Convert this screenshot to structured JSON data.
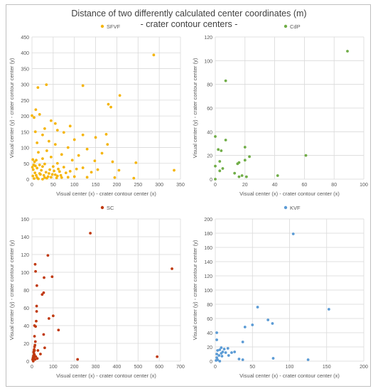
{
  "figure": {
    "title": "Distance of two differently calculated center coordinates (m)",
    "subtitle": "- crater contour centers -"
  },
  "colors": {
    "SFVF": "#f5b50b",
    "CdP": "#70ad47",
    "SC": "#c0390f",
    "KVF": "#5b9bd5",
    "grid": "#d9d9d9",
    "text": "#595959"
  },
  "chart_data": [
    {
      "type": "scatter",
      "legend": "SFVF",
      "legend_position": "top",
      "xlabel": "Visual center (x) - crater contour center (x)",
      "ylabel": "Visual center (y) - crater contour center (y)",
      "xlim": [
        0,
        350
      ],
      "ylim": [
        0,
        450
      ],
      "xticks": [
        0,
        50,
        100,
        150,
        200,
        250,
        300,
        350
      ],
      "yticks": [
        0,
        50,
        100,
        150,
        200,
        250,
        300,
        350,
        400,
        450
      ],
      "grid": true,
      "points": [
        [
          287,
          393
        ],
        [
          34,
          299
        ],
        [
          14,
          290
        ],
        [
          120,
          296
        ],
        [
          207,
          265
        ],
        [
          180,
          237
        ],
        [
          186,
          228
        ],
        [
          9,
          220
        ],
        [
          18,
          205
        ],
        [
          0,
          201
        ],
        [
          5,
          195
        ],
        [
          45,
          185
        ],
        [
          55,
          176
        ],
        [
          90,
          168
        ],
        [
          30,
          160
        ],
        [
          60,
          155
        ],
        [
          8,
          150
        ],
        [
          25,
          140
        ],
        [
          75,
          148
        ],
        [
          120,
          140
        ],
        [
          175,
          142
        ],
        [
          150,
          132
        ],
        [
          100,
          125
        ],
        [
          40,
          120
        ],
        [
          12,
          115
        ],
        [
          55,
          110
        ],
        [
          178,
          110
        ],
        [
          85,
          100
        ],
        [
          130,
          95
        ],
        [
          35,
          90
        ],
        [
          15,
          85
        ],
        [
          165,
          82
        ],
        [
          70,
          78
        ],
        [
          110,
          75
        ],
        [
          45,
          70
        ],
        [
          25,
          65
        ],
        [
          95,
          60
        ],
        [
          148,
          58
        ],
        [
          190,
          55
        ],
        [
          245,
          52
        ],
        [
          60,
          50
        ],
        [
          30,
          48
        ],
        [
          18,
          45
        ],
        [
          8,
          42
        ],
        [
          50,
          40
        ],
        [
          75,
          38
        ],
        [
          120,
          36
        ],
        [
          105,
          32
        ],
        [
          155,
          30
        ],
        [
          205,
          28
        ],
        [
          335,
          28
        ],
        [
          140,
          22
        ],
        [
          80,
          20
        ],
        [
          40,
          18
        ],
        [
          20,
          15
        ],
        [
          10,
          12
        ],
        [
          60,
          10
        ],
        [
          100,
          8
        ],
        [
          130,
          6
        ],
        [
          195,
          5
        ],
        [
          240,
          3
        ],
        [
          5,
          2
        ],
        [
          15,
          1
        ],
        [
          25,
          0
        ],
        [
          35,
          3
        ],
        [
          45,
          6
        ],
        [
          55,
          14
        ],
        [
          65,
          24
        ],
        [
          70,
          5
        ],
        [
          3,
          30
        ],
        [
          7,
          20
        ],
        [
          2,
          10
        ],
        [
          12,
          35
        ],
        [
          22,
          28
        ],
        [
          28,
          12
        ],
        [
          33,
          22
        ],
        [
          38,
          8
        ],
        [
          42,
          30
        ],
        [
          48,
          15
        ],
        [
          52,
          26
        ],
        [
          58,
          4
        ],
        [
          62,
          32
        ],
        [
          68,
          12
        ],
        [
          85,
          6
        ],
        [
          90,
          25
        ],
        [
          12,
          5
        ],
        [
          18,
          18
        ],
        [
          25,
          40
        ],
        [
          30,
          5
        ],
        [
          6,
          55
        ],
        [
          4,
          45
        ],
        [
          10,
          60
        ],
        [
          2,
          62
        ],
        [
          1,
          38
        ]
      ]
    },
    {
      "type": "scatter",
      "legend": "CdP",
      "legend_position": "top",
      "xlabel": "Visual center (x) - crater contour center (x)",
      "ylabel": "Visual center (y) - crater contour center (y)",
      "xlim": [
        0,
        100
      ],
      "ylim": [
        0,
        120
      ],
      "xticks": [
        0,
        20,
        40,
        60,
        80,
        100
      ],
      "yticks": [
        0,
        20,
        40,
        60,
        80,
        100,
        120
      ],
      "grid": true,
      "points": [
        [
          89,
          108
        ],
        [
          7,
          83
        ],
        [
          0,
          36
        ],
        [
          7,
          33
        ],
        [
          20,
          27
        ],
        [
          2,
          25
        ],
        [
          4,
          24
        ],
        [
          23,
          19
        ],
        [
          61,
          20
        ],
        [
          20,
          16
        ],
        [
          3,
          15
        ],
        [
          16,
          14
        ],
        [
          15,
          13
        ],
        [
          0,
          11
        ],
        [
          5,
          9
        ],
        [
          3,
          7
        ],
        [
          13,
          5
        ],
        [
          18,
          3
        ],
        [
          21,
          2
        ],
        [
          16,
          2
        ],
        [
          42,
          3
        ],
        [
          0,
          0
        ]
      ]
    },
    {
      "type": "scatter",
      "legend": "SC",
      "legend_position": "top",
      "xlabel": "Visual center (x) - crater contour center (x)",
      "ylabel": "Visual center (y) - crater contour center (y)",
      "xlim": [
        0,
        700
      ],
      "ylim": [
        0,
        160
      ],
      "xticks": [
        0,
        100,
        200,
        300,
        400,
        500,
        600,
        700
      ],
      "yticks": [
        0,
        20,
        40,
        60,
        80,
        100,
        120,
        140,
        160
      ],
      "grid": true,
      "points": [
        [
          275,
          144
        ],
        [
          75,
          119
        ],
        [
          15,
          109
        ],
        [
          17,
          101
        ],
        [
          660,
          104
        ],
        [
          95,
          95
        ],
        [
          57,
          94
        ],
        [
          23,
          85
        ],
        [
          48,
          75
        ],
        [
          55,
          77
        ],
        [
          22,
          62
        ],
        [
          22,
          56
        ],
        [
          100,
          51
        ],
        [
          80,
          48
        ],
        [
          20,
          45
        ],
        [
          17,
          39
        ],
        [
          12,
          40
        ],
        [
          125,
          35
        ],
        [
          55,
          30
        ],
        [
          16,
          22
        ],
        [
          14,
          18
        ],
        [
          12,
          16
        ],
        [
          10,
          13
        ],
        [
          12,
          12
        ],
        [
          9,
          11
        ],
        [
          8,
          10
        ],
        [
          10,
          8
        ],
        [
          12,
          7
        ],
        [
          7,
          6
        ],
        [
          9,
          5
        ],
        [
          5,
          4
        ],
        [
          8,
          3
        ],
        [
          3,
          2
        ],
        [
          5,
          1
        ],
        [
          6,
          0
        ],
        [
          15,
          2
        ],
        [
          18,
          5
        ],
        [
          25,
          3
        ],
        [
          215,
          2
        ],
        [
          590,
          5
        ],
        [
          28,
          12
        ],
        [
          40,
          8
        ],
        [
          60,
          15
        ],
        [
          12,
          28
        ]
      ]
    },
    {
      "type": "scatter",
      "legend": "KVF",
      "legend_position": "top",
      "xlabel": "Visual center (x) - crater contour center (x)",
      "ylabel": "Visual center (y) - crater contour center (y)",
      "xlim": [
        0,
        200
      ],
      "ylim": [
        0,
        200
      ],
      "xticks": [
        0,
        50,
        100,
        150,
        200
      ],
      "yticks": [
        0,
        20,
        40,
        60,
        80,
        100,
        120,
        140,
        160,
        180,
        200
      ],
      "grid": true,
      "points": [
        [
          105,
          179
        ],
        [
          57,
          76
        ],
        [
          153,
          73
        ],
        [
          71,
          58
        ],
        [
          77,
          53
        ],
        [
          50,
          51
        ],
        [
          40,
          48
        ],
        [
          2,
          40
        ],
        [
          2,
          30
        ],
        [
          37,
          27
        ],
        [
          8,
          19
        ],
        [
          17,
          18
        ],
        [
          6,
          16
        ],
        [
          12,
          17
        ],
        [
          3,
          15
        ],
        [
          10,
          13
        ],
        [
          14,
          12
        ],
        [
          22,
          12
        ],
        [
          26,
          13
        ],
        [
          8,
          11
        ],
        [
          2,
          10
        ],
        [
          5,
          8
        ],
        [
          18,
          8
        ],
        [
          9,
          7
        ],
        [
          2,
          5
        ],
        [
          78,
          4
        ],
        [
          32,
          3
        ],
        [
          37,
          2
        ],
        [
          125,
          2
        ],
        [
          3,
          2
        ],
        [
          6,
          0
        ],
        [
          1,
          1
        ]
      ]
    }
  ]
}
